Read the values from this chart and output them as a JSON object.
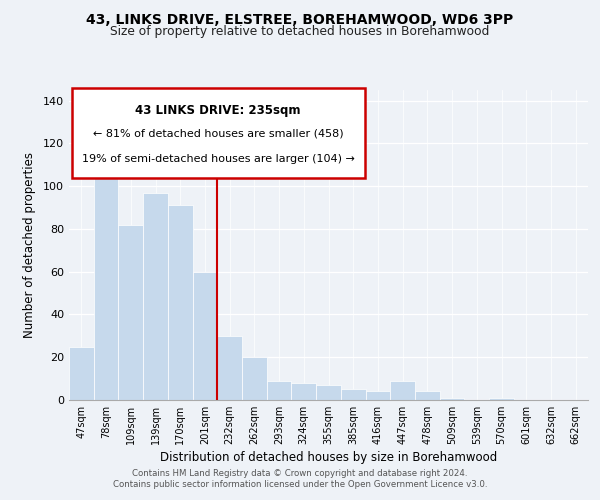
{
  "title1": "43, LINKS DRIVE, ELSTREE, BOREHAMWOOD, WD6 3PP",
  "title2": "Size of property relative to detached houses in Borehamwood",
  "xlabel": "Distribution of detached houses by size in Borehamwood",
  "ylabel": "Number of detached properties",
  "bar_labels": [
    "47sqm",
    "78sqm",
    "109sqm",
    "139sqm",
    "170sqm",
    "201sqm",
    "232sqm",
    "262sqm",
    "293sqm",
    "324sqm",
    "355sqm",
    "385sqm",
    "416sqm",
    "447sqm",
    "478sqm",
    "509sqm",
    "539sqm",
    "570sqm",
    "601sqm",
    "632sqm",
    "662sqm"
  ],
  "bar_values": [
    25,
    104,
    82,
    97,
    91,
    60,
    30,
    20,
    9,
    8,
    7,
    5,
    4,
    9,
    4,
    1,
    0,
    1,
    0,
    0,
    0
  ],
  "bar_color": "#c6d9ec",
  "annotation_title": "43 LINKS DRIVE: 235sqm",
  "annotation_line1": "← 81% of detached houses are smaller (458)",
  "annotation_line2": "19% of semi-detached houses are larger (104) →",
  "box_edge_color": "#cc0000",
  "vline_color": "#cc0000",
  "ylim": [
    0,
    145
  ],
  "yticks": [
    0,
    20,
    40,
    60,
    80,
    100,
    120,
    140
  ],
  "footer1": "Contains HM Land Registry data © Crown copyright and database right 2024.",
  "footer2": "Contains public sector information licensed under the Open Government Licence v3.0.",
  "bg_color": "#eef2f7"
}
